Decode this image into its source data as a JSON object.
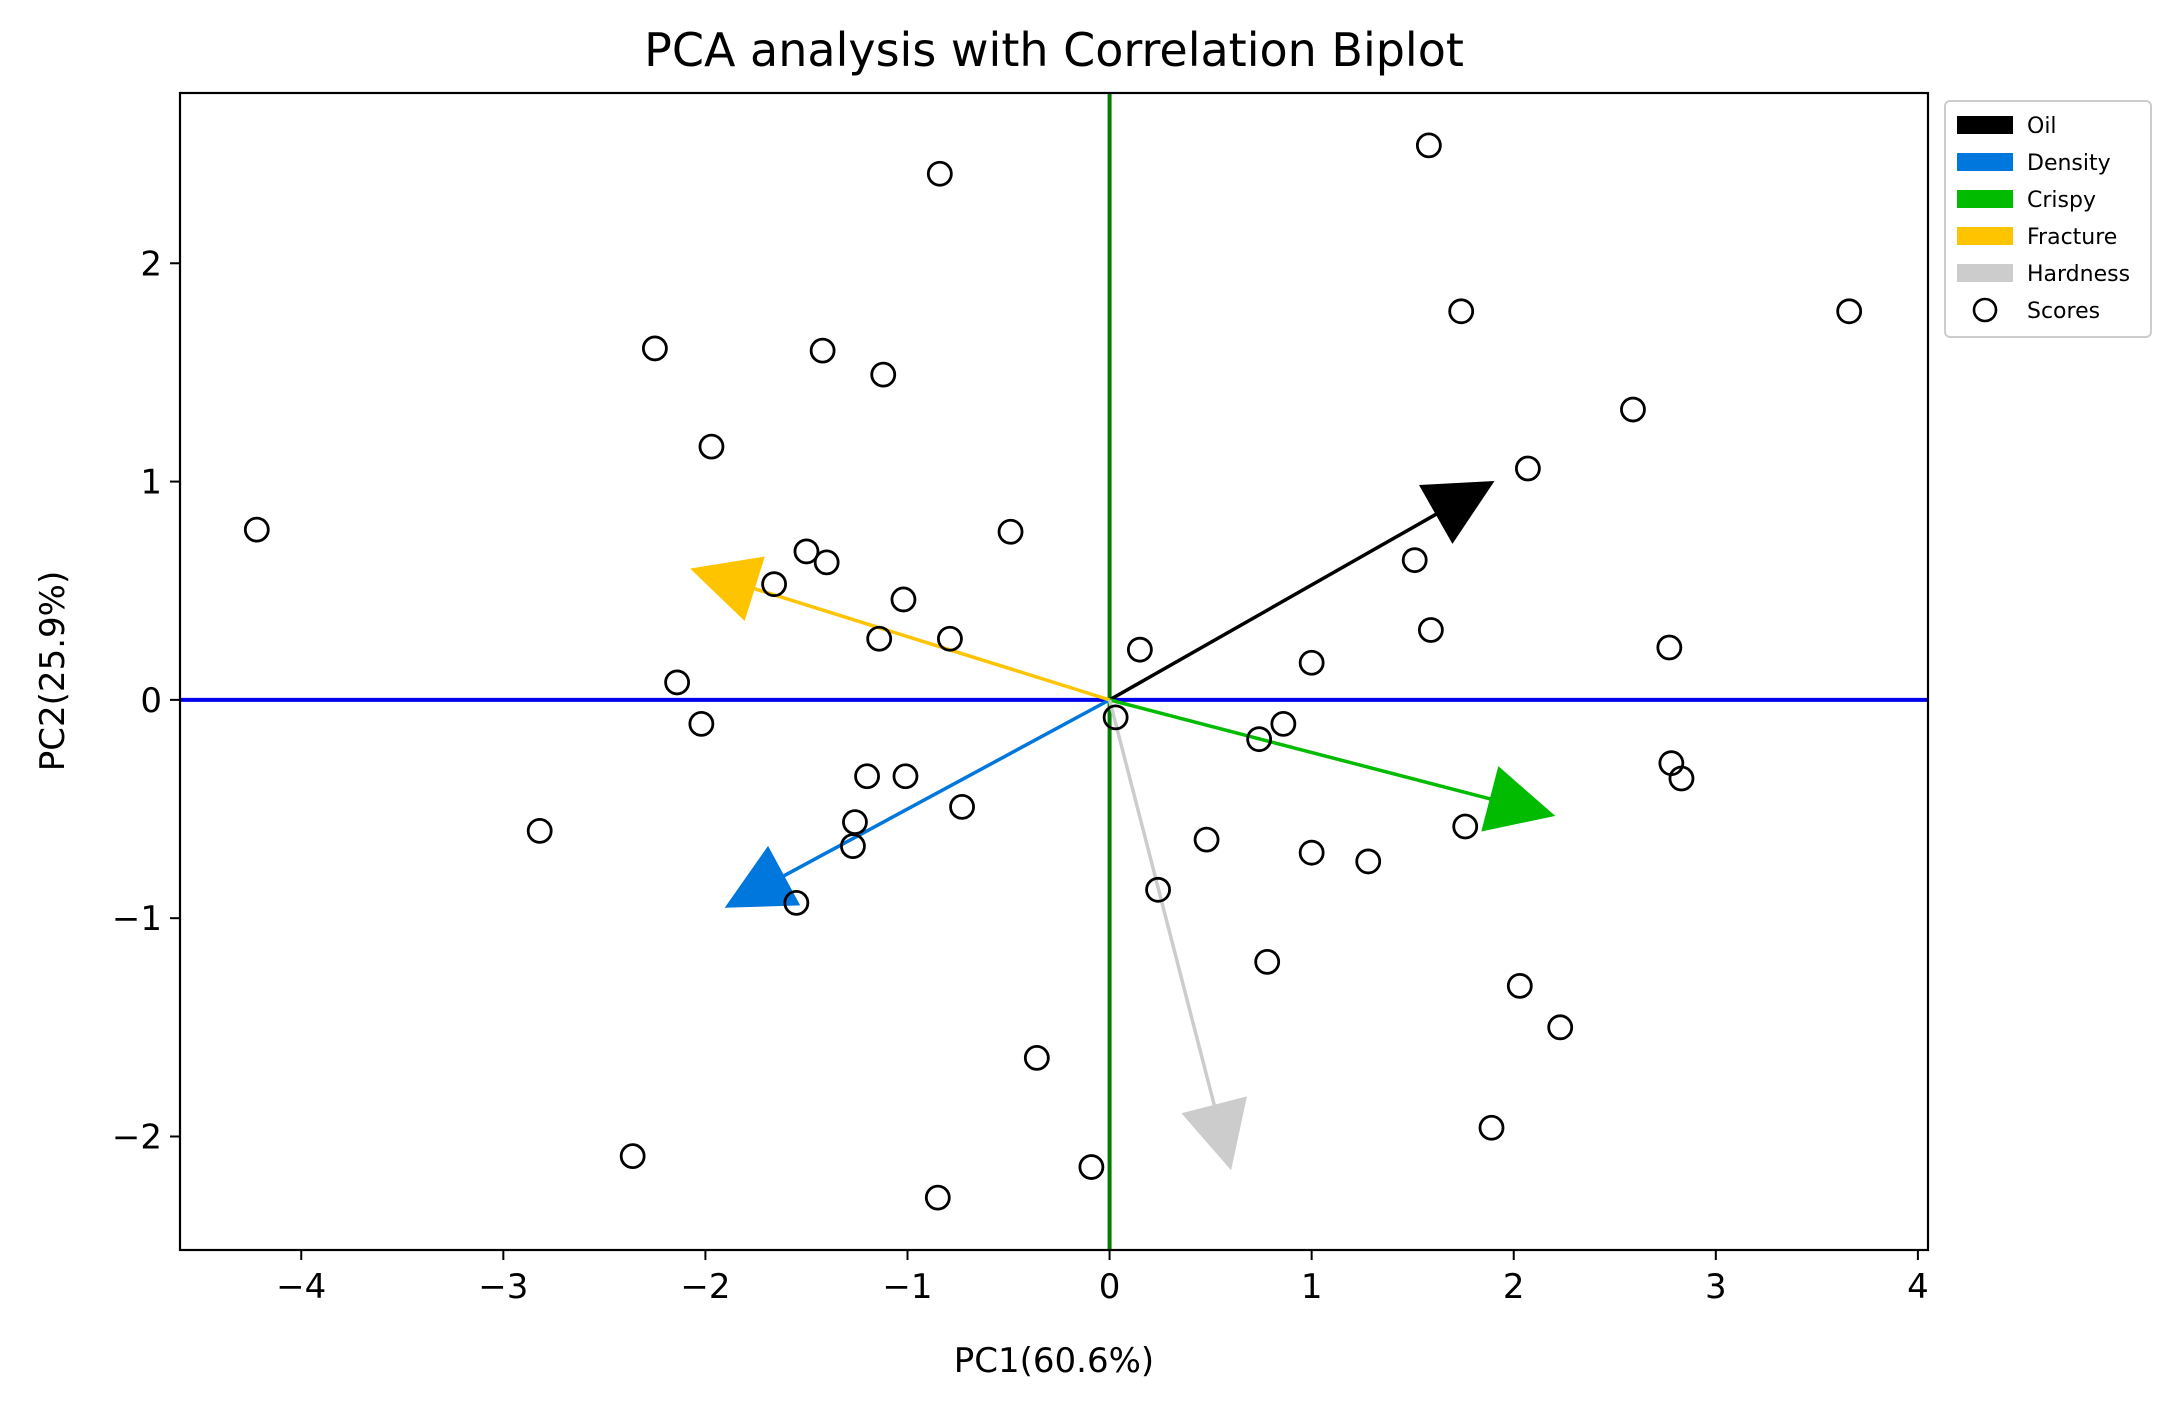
{
  "chart_data": {
    "type": "scatter",
    "title": "PCA analysis with Correlation Biplot",
    "xlabel": "PC1(60.6%)",
    "ylabel": "PC2(25.9%)",
    "xlim": [
      -4.6,
      4.05
    ],
    "ylim": [
      -2.52,
      2.78
    ],
    "xticks": [
      -4,
      -3,
      -2,
      -1,
      0,
      1,
      2,
      3,
      4
    ],
    "yticks": [
      -2,
      -1,
      0,
      1,
      2
    ],
    "grid": false,
    "legend_position": "outside-top-right",
    "reference_lines": {
      "vertical": {
        "x": 0,
        "color": "#008000"
      },
      "horizontal": {
        "y": 0,
        "color": "#0000ee"
      }
    },
    "loadings": [
      {
        "name": "Oil",
        "color": "#000000",
        "x": 1.9,
        "y": 1.0
      },
      {
        "name": "Density",
        "color": "#0077dd",
        "x": -1.9,
        "y": -0.95
      },
      {
        "name": "Crispy",
        "color": "#00bb00",
        "x": 2.2,
        "y": -0.53
      },
      {
        "name": "Fracture",
        "color": "#ffc400",
        "x": -2.07,
        "y": 0.6
      },
      {
        "name": "Hardness",
        "color": "#cccccc",
        "x": 0.6,
        "y": -2.15
      }
    ],
    "scores_name": "Scores",
    "scores": [
      [
        -4.22,
        0.78
      ],
      [
        -2.82,
        -0.6
      ],
      [
        -2.36,
        -2.09
      ],
      [
        -2.25,
        1.61
      ],
      [
        -2.14,
        0.08
      ],
      [
        -2.02,
        -0.11
      ],
      [
        -1.97,
        1.16
      ],
      [
        -1.66,
        0.53
      ],
      [
        -1.55,
        -0.93
      ],
      [
        -1.5,
        0.68
      ],
      [
        -1.42,
        1.6
      ],
      [
        -1.4,
        0.63
      ],
      [
        -1.2,
        -0.35
      ],
      [
        -1.26,
        -0.56
      ],
      [
        -1.27,
        -0.67
      ],
      [
        -1.14,
        0.28
      ],
      [
        -1.12,
        1.49
      ],
      [
        -1.02,
        0.46
      ],
      [
        -1.01,
        -0.35
      ],
      [
        -0.84,
        2.41
      ],
      [
        -0.85,
        -2.28
      ],
      [
        -0.79,
        0.28
      ],
      [
        -0.73,
        -0.49
      ],
      [
        -0.49,
        0.77
      ],
      [
        -0.36,
        -1.64
      ],
      [
        -0.09,
        -2.14
      ],
      [
        0.03,
        -0.08
      ],
      [
        0.15,
        0.23
      ],
      [
        0.24,
        -0.87
      ],
      [
        0.48,
        -0.64
      ],
      [
        0.74,
        -0.18
      ],
      [
        0.78,
        -1.2
      ],
      [
        0.86,
        -0.11
      ],
      [
        1.0,
        0.17
      ],
      [
        1.0,
        -0.7
      ],
      [
        1.28,
        -0.74
      ],
      [
        1.51,
        0.64
      ],
      [
        1.58,
        2.54
      ],
      [
        1.59,
        0.32
      ],
      [
        1.74,
        1.78
      ],
      [
        1.76,
        -0.58
      ],
      [
        1.89,
        -1.96
      ],
      [
        2.03,
        -1.31
      ],
      [
        2.07,
        1.06
      ],
      [
        2.23,
        -1.5
      ],
      [
        2.59,
        1.33
      ],
      [
        2.77,
        0.24
      ],
      [
        2.78,
        -0.29
      ],
      [
        2.83,
        -0.36
      ],
      [
        3.66,
        1.78
      ]
    ]
  }
}
